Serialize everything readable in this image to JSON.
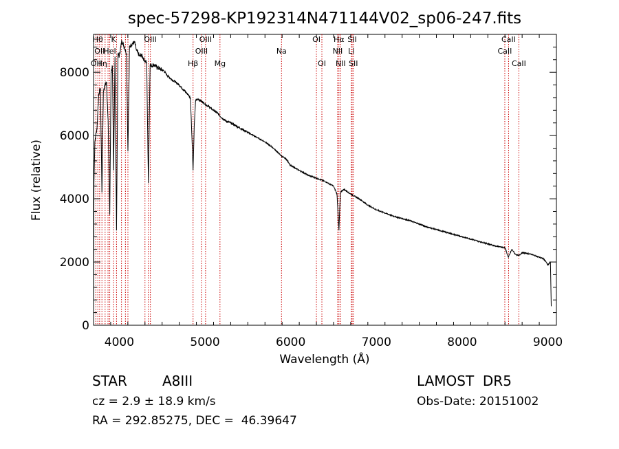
{
  "chart_data": {
    "type": "line",
    "title": "spec-57298-KP192314N471144V02_sp06-247.fits",
    "xlabel": "Wavelength (Å)",
    "ylabel": "Flux (relative)",
    "xlim": [
      3700,
      9100
    ],
    "ylim": [
      0,
      9200
    ],
    "x_ticks": [
      4000,
      5000,
      6000,
      7000,
      8000,
      9000
    ],
    "y_ticks": [
      0,
      2000,
      4000,
      6000,
      8000
    ],
    "grid": false,
    "line_color": "#000000",
    "marker_color": "#cc0000",
    "series": [
      {
        "x": [
          3700,
          3705,
          3715,
          3725,
          3740,
          3760,
          3780,
          3798,
          3815,
          3835,
          3850,
          3870,
          3889,
          3905,
          3920,
          3934,
          3950,
          3968,
          3985,
          4000,
          4030,
          4060,
          4085,
          4101,
          4120,
          4150,
          4180,
          4200,
          4220,
          4240,
          4260,
          4290,
          4320,
          4340,
          4360,
          4380,
          4400,
          4420,
          4450,
          4480,
          4520,
          4560,
          4600,
          4650,
          4700,
          4750,
          4800,
          4830,
          4850,
          4861,
          4875,
          4890,
          4920,
          4950,
          4980,
          5000,
          5050,
          5100,
          5150,
          5200,
          5250,
          5300,
          5400,
          5500,
          5600,
          5700,
          5800,
          5893,
          5950,
          6000,
          6100,
          6200,
          6300,
          6400,
          6500,
          6540,
          6563,
          6580,
          6620,
          6700,
          6800,
          6900,
          7000,
          7200,
          7400,
          7600,
          7800,
          8000,
          8200,
          8400,
          8500,
          8540,
          8580,
          8620,
          8662,
          8700,
          8800,
          8900,
          8950,
          8980,
          9000,
          9030,
          9040
        ],
        "values": [
          500,
          4500,
          5800,
          6000,
          6200,
          7300,
          7500,
          4200,
          7400,
          7600,
          7700,
          6500,
          3500,
          8000,
          8200,
          4900,
          8500,
          3000,
          8600,
          8500,
          9000,
          8800,
          8600,
          5500,
          8800,
          8900,
          8950,
          8700,
          8600,
          8500,
          8550,
          8400,
          8300,
          4500,
          8250,
          8200,
          8250,
          8200,
          8150,
          8100,
          8050,
          7900,
          7800,
          7700,
          7600,
          7450,
          7300,
          7200,
          5800,
          4900,
          6300,
          7100,
          7150,
          7100,
          7050,
          7000,
          6900,
          6800,
          6700,
          6550,
          6450,
          6400,
          6250,
          6100,
          5950,
          5800,
          5600,
          5350,
          5250,
          5050,
          4900,
          4750,
          4650,
          4550,
          4400,
          4150,
          3000,
          4200,
          4300,
          4150,
          4000,
          3800,
          3650,
          3450,
          3300,
          3100,
          2950,
          2800,
          2650,
          2500,
          2450,
          2150,
          2400,
          2250,
          2200,
          2300,
          2250,
          2150,
          2100,
          2000,
          1900,
          2000,
          600
        ]
      }
    ],
    "lines": [
      {
        "wl": 3727,
        "label": "OII",
        "row": 2
      },
      {
        "wl": 3750,
        "label": "Hθ",
        "row": 0
      },
      {
        "wl": 3771,
        "label": "OII",
        "row": 1
      },
      {
        "wl": 3798,
        "label": "Hη",
        "row": 2
      },
      {
        "wl": 3835,
        "label": "",
        "row": 0
      },
      {
        "wl": 3869,
        "label": "",
        "row": 0
      },
      {
        "wl": 3889,
        "label": "HeI",
        "row": 1
      },
      {
        "wl": 3934,
        "label": "K",
        "row": 0
      },
      {
        "wl": 3968,
        "label": "",
        "row": 0
      },
      {
        "wl": 4026,
        "label": "",
        "row": 1
      },
      {
        "wl": 4072,
        "label": "",
        "row": 0
      },
      {
        "wl": 4101,
        "label": "",
        "row": 0
      },
      {
        "wl": 4300,
        "label": "",
        "row": 0
      },
      {
        "wl": 4340,
        "label": "",
        "row": 0
      },
      {
        "wl": 4363,
        "label": "OIII",
        "row": 0
      },
      {
        "wl": 4861,
        "label": "Hβ",
        "row": 2
      },
      {
        "wl": 4959,
        "label": "OIII",
        "row": 1
      },
      {
        "wl": 5007,
        "label": "OIII",
        "row": 0
      },
      {
        "wl": 5175,
        "label": "Mg",
        "row": 2
      },
      {
        "wl": 5893,
        "label": "Na",
        "row": 1
      },
      {
        "wl": 6300,
        "label": "OI",
        "row": 0
      },
      {
        "wl": 6364,
        "label": "OI",
        "row": 2
      },
      {
        "wl": 6548,
        "label": "NII",
        "row": 1
      },
      {
        "wl": 6563,
        "label": "Hα",
        "row": 0
      },
      {
        "wl": 6583,
        "label": "NII",
        "row": 2
      },
      {
        "wl": 6707,
        "label": "Li",
        "row": 1
      },
      {
        "wl": 6717,
        "label": "SII",
        "row": 0
      },
      {
        "wl": 6731,
        "label": "SII",
        "row": 2
      },
      {
        "wl": 8498,
        "label": "CaII",
        "row": 1
      },
      {
        "wl": 8542,
        "label": "CaII",
        "row": 0
      },
      {
        "wl": 8662,
        "label": "CaII",
        "row": 2
      }
    ]
  },
  "info": {
    "class": "STAR",
    "subclass": "A8III",
    "cz": "cz = 2.9 ± 18.9 km/s",
    "radec": "RA = 292.85275, DEC =  46.39647",
    "survey": "LAMOST  DR5",
    "obsdate": "Obs-Date: 20151002"
  }
}
